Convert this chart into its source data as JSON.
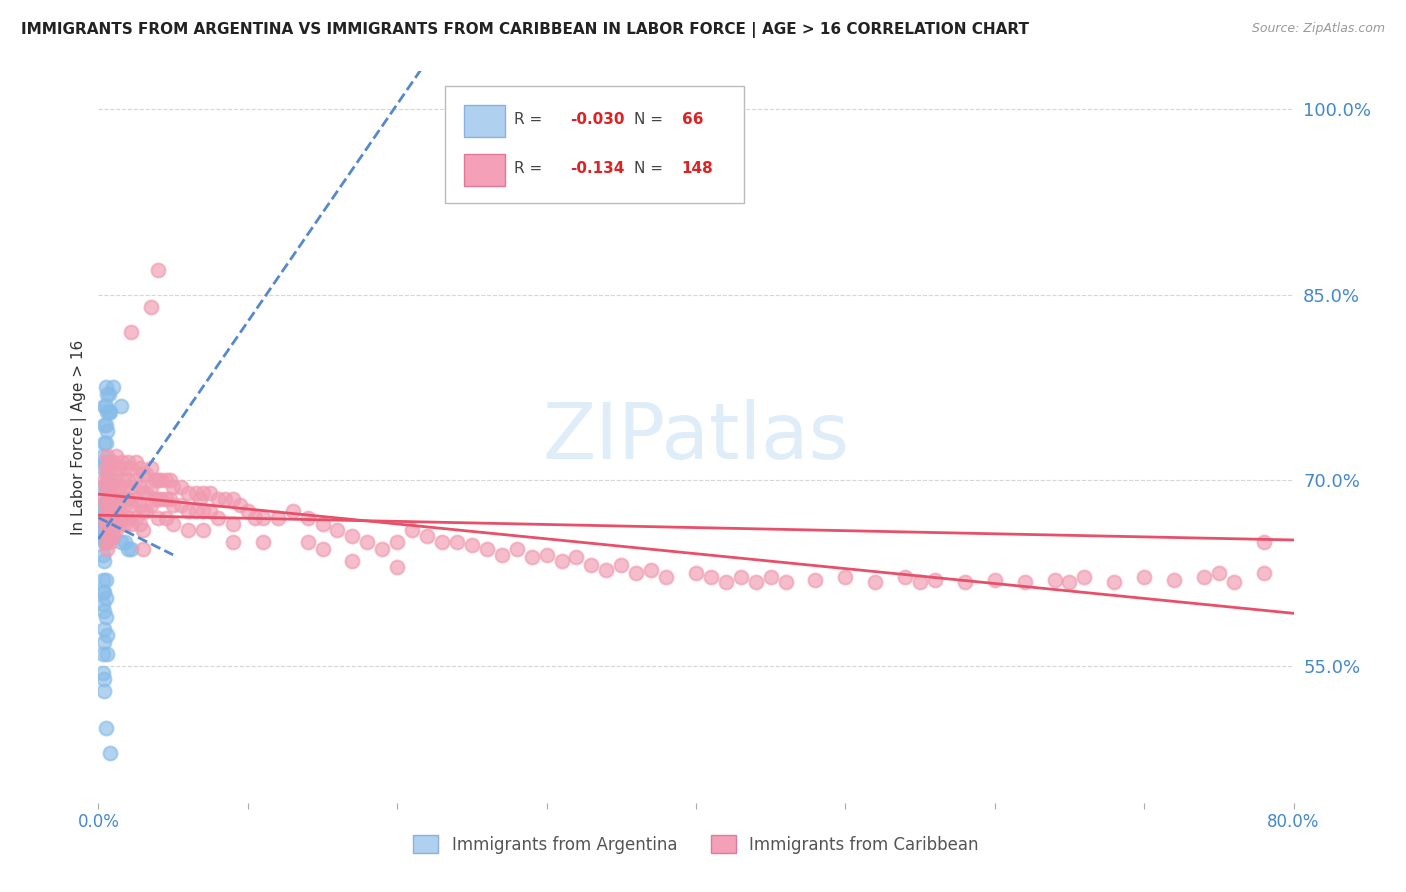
{
  "title": "IMMIGRANTS FROM ARGENTINA VS IMMIGRANTS FROM CARIBBEAN IN LABOR FORCE | AGE > 16 CORRELATION CHART",
  "source": "Source: ZipAtlas.com",
  "ylabel": "In Labor Force | Age > 16",
  "watermark": "ZIPatlas",
  "argentina_color": "#88bce8",
  "caribbean_color": "#f09ab0",
  "argentina_line_color": "#5588cc",
  "caribbean_line_color": "#e8506a",
  "xmin": 0.0,
  "xmax": 0.8,
  "ymin": 0.44,
  "ymax": 1.03,
  "right_yticks": [
    1.0,
    0.85,
    0.7,
    0.55
  ],
  "right_yticklabels": [
    "100.0%",
    "85.0%",
    "70.0%",
    "55.0%"
  ],
  "grid_color": "#cccccc",
  "background_color": "#ffffff",
  "argentina_scatter": [
    [
      0.002,
      0.68
    ],
    [
      0.002,
      0.67
    ],
    [
      0.002,
      0.66
    ],
    [
      0.002,
      0.655
    ],
    [
      0.003,
      0.72
    ],
    [
      0.003,
      0.71
    ],
    [
      0.003,
      0.695
    ],
    [
      0.003,
      0.67
    ],
    [
      0.003,
      0.655
    ],
    [
      0.003,
      0.64
    ],
    [
      0.003,
      0.62
    ],
    [
      0.003,
      0.61
    ],
    [
      0.003,
      0.6
    ],
    [
      0.004,
      0.76
    ],
    [
      0.004,
      0.745
    ],
    [
      0.004,
      0.73
    ],
    [
      0.004,
      0.715
    ],
    [
      0.004,
      0.68
    ],
    [
      0.004,
      0.665
    ],
    [
      0.004,
      0.65
    ],
    [
      0.004,
      0.635
    ],
    [
      0.004,
      0.61
    ],
    [
      0.004,
      0.595
    ],
    [
      0.004,
      0.58
    ],
    [
      0.004,
      0.57
    ],
    [
      0.005,
      0.775
    ],
    [
      0.005,
      0.76
    ],
    [
      0.005,
      0.745
    ],
    [
      0.005,
      0.73
    ],
    [
      0.005,
      0.695
    ],
    [
      0.005,
      0.68
    ],
    [
      0.005,
      0.665
    ],
    [
      0.005,
      0.65
    ],
    [
      0.005,
      0.62
    ],
    [
      0.005,
      0.605
    ],
    [
      0.005,
      0.59
    ],
    [
      0.006,
      0.77
    ],
    [
      0.006,
      0.755
    ],
    [
      0.006,
      0.74
    ],
    [
      0.006,
      0.7
    ],
    [
      0.006,
      0.685
    ],
    [
      0.006,
      0.67
    ],
    [
      0.006,
      0.655
    ],
    [
      0.007,
      0.77
    ],
    [
      0.007,
      0.755
    ],
    [
      0.007,
      0.7
    ],
    [
      0.007,
      0.685
    ],
    [
      0.008,
      0.755
    ],
    [
      0.008,
      0.69
    ],
    [
      0.008,
      0.675
    ],
    [
      0.01,
      0.775
    ],
    [
      0.01,
      0.67
    ],
    [
      0.01,
      0.655
    ],
    [
      0.012,
      0.665
    ],
    [
      0.015,
      0.76
    ],
    [
      0.015,
      0.65
    ],
    [
      0.018,
      0.65
    ],
    [
      0.02,
      0.645
    ],
    [
      0.022,
      0.645
    ],
    [
      0.003,
      0.56
    ],
    [
      0.003,
      0.545
    ],
    [
      0.004,
      0.54
    ],
    [
      0.004,
      0.53
    ],
    [
      0.005,
      0.5
    ],
    [
      0.006,
      0.575
    ],
    [
      0.006,
      0.56
    ],
    [
      0.008,
      0.48
    ]
  ],
  "caribbean_scatter": [
    [
      0.004,
      0.7
    ],
    [
      0.004,
      0.685
    ],
    [
      0.004,
      0.67
    ],
    [
      0.005,
      0.71
    ],
    [
      0.005,
      0.695
    ],
    [
      0.005,
      0.68
    ],
    [
      0.005,
      0.665
    ],
    [
      0.005,
      0.65
    ],
    [
      0.006,
      0.72
    ],
    [
      0.006,
      0.705
    ],
    [
      0.006,
      0.69
    ],
    [
      0.006,
      0.675
    ],
    [
      0.006,
      0.66
    ],
    [
      0.006,
      0.645
    ],
    [
      0.007,
      0.715
    ],
    [
      0.007,
      0.7
    ],
    [
      0.007,
      0.685
    ],
    [
      0.007,
      0.67
    ],
    [
      0.007,
      0.655
    ],
    [
      0.008,
      0.71
    ],
    [
      0.008,
      0.695
    ],
    [
      0.008,
      0.68
    ],
    [
      0.008,
      0.665
    ],
    [
      0.008,
      0.65
    ],
    [
      0.01,
      0.715
    ],
    [
      0.01,
      0.7
    ],
    [
      0.01,
      0.685
    ],
    [
      0.01,
      0.67
    ],
    [
      0.01,
      0.655
    ],
    [
      0.012,
      0.72
    ],
    [
      0.012,
      0.705
    ],
    [
      0.012,
      0.69
    ],
    [
      0.012,
      0.675
    ],
    [
      0.012,
      0.66
    ],
    [
      0.014,
      0.71
    ],
    [
      0.014,
      0.695
    ],
    [
      0.014,
      0.68
    ],
    [
      0.014,
      0.665
    ],
    [
      0.016,
      0.715
    ],
    [
      0.016,
      0.7
    ],
    [
      0.016,
      0.685
    ],
    [
      0.016,
      0.67
    ],
    [
      0.018,
      0.71
    ],
    [
      0.018,
      0.695
    ],
    [
      0.018,
      0.68
    ],
    [
      0.018,
      0.665
    ],
    [
      0.02,
      0.715
    ],
    [
      0.02,
      0.7
    ],
    [
      0.02,
      0.685
    ],
    [
      0.02,
      0.67
    ],
    [
      0.022,
      0.82
    ],
    [
      0.022,
      0.71
    ],
    [
      0.022,
      0.695
    ],
    [
      0.022,
      0.68
    ],
    [
      0.022,
      0.665
    ],
    [
      0.025,
      0.715
    ],
    [
      0.025,
      0.7
    ],
    [
      0.025,
      0.685
    ],
    [
      0.025,
      0.67
    ],
    [
      0.028,
      0.71
    ],
    [
      0.028,
      0.695
    ],
    [
      0.028,
      0.68
    ],
    [
      0.028,
      0.665
    ],
    [
      0.03,
      0.705
    ],
    [
      0.03,
      0.69
    ],
    [
      0.03,
      0.675
    ],
    [
      0.03,
      0.66
    ],
    [
      0.03,
      0.645
    ],
    [
      0.032,
      0.705
    ],
    [
      0.032,
      0.69
    ],
    [
      0.032,
      0.675
    ],
    [
      0.035,
      0.71
    ],
    [
      0.035,
      0.84
    ],
    [
      0.035,
      0.695
    ],
    [
      0.035,
      0.68
    ],
    [
      0.038,
      0.7
    ],
    [
      0.038,
      0.685
    ],
    [
      0.04,
      0.87
    ],
    [
      0.04,
      0.7
    ],
    [
      0.04,
      0.685
    ],
    [
      0.04,
      0.67
    ],
    [
      0.042,
      0.7
    ],
    [
      0.042,
      0.685
    ],
    [
      0.045,
      0.7
    ],
    [
      0.045,
      0.685
    ],
    [
      0.045,
      0.67
    ],
    [
      0.048,
      0.7
    ],
    [
      0.048,
      0.685
    ],
    [
      0.05,
      0.695
    ],
    [
      0.05,
      0.68
    ],
    [
      0.05,
      0.665
    ],
    [
      0.055,
      0.695
    ],
    [
      0.055,
      0.68
    ],
    [
      0.06,
      0.69
    ],
    [
      0.06,
      0.675
    ],
    [
      0.06,
      0.66
    ],
    [
      0.065,
      0.69
    ],
    [
      0.065,
      0.675
    ],
    [
      0.068,
      0.685
    ],
    [
      0.07,
      0.69
    ],
    [
      0.07,
      0.675
    ],
    [
      0.07,
      0.66
    ],
    [
      0.075,
      0.69
    ],
    [
      0.075,
      0.675
    ],
    [
      0.08,
      0.685
    ],
    [
      0.08,
      0.67
    ],
    [
      0.085,
      0.685
    ],
    [
      0.09,
      0.685
    ],
    [
      0.09,
      0.665
    ],
    [
      0.09,
      0.65
    ],
    [
      0.095,
      0.68
    ],
    [
      0.1,
      0.675
    ],
    [
      0.105,
      0.67
    ],
    [
      0.11,
      0.67
    ],
    [
      0.11,
      0.65
    ],
    [
      0.12,
      0.67
    ],
    [
      0.13,
      0.675
    ],
    [
      0.14,
      0.67
    ],
    [
      0.14,
      0.65
    ],
    [
      0.15,
      0.665
    ],
    [
      0.15,
      0.645
    ],
    [
      0.16,
      0.66
    ],
    [
      0.17,
      0.655
    ],
    [
      0.17,
      0.635
    ],
    [
      0.18,
      0.65
    ],
    [
      0.19,
      0.645
    ],
    [
      0.2,
      0.65
    ],
    [
      0.2,
      0.63
    ],
    [
      0.21,
      0.66
    ],
    [
      0.22,
      0.655
    ],
    [
      0.23,
      0.65
    ],
    [
      0.24,
      0.65
    ],
    [
      0.25,
      0.648
    ],
    [
      0.26,
      0.645
    ],
    [
      0.27,
      0.64
    ],
    [
      0.28,
      0.645
    ],
    [
      0.29,
      0.638
    ],
    [
      0.3,
      0.64
    ],
    [
      0.31,
      0.635
    ],
    [
      0.32,
      0.638
    ],
    [
      0.33,
      0.632
    ],
    [
      0.34,
      0.628
    ],
    [
      0.35,
      0.632
    ],
    [
      0.36,
      0.625
    ],
    [
      0.37,
      0.628
    ],
    [
      0.38,
      0.622
    ],
    [
      0.4,
      0.625
    ],
    [
      0.41,
      0.622
    ],
    [
      0.42,
      0.618
    ],
    [
      0.43,
      0.622
    ],
    [
      0.44,
      0.618
    ],
    [
      0.45,
      0.622
    ],
    [
      0.46,
      0.618
    ],
    [
      0.48,
      0.62
    ],
    [
      0.5,
      0.622
    ],
    [
      0.52,
      0.618
    ],
    [
      0.54,
      0.622
    ],
    [
      0.55,
      0.618
    ],
    [
      0.56,
      0.62
    ],
    [
      0.58,
      0.618
    ],
    [
      0.6,
      0.62
    ],
    [
      0.62,
      0.618
    ],
    [
      0.64,
      0.62
    ],
    [
      0.65,
      0.618
    ],
    [
      0.66,
      0.622
    ],
    [
      0.68,
      0.618
    ],
    [
      0.7,
      0.622
    ],
    [
      0.72,
      0.62
    ],
    [
      0.74,
      0.622
    ],
    [
      0.75,
      0.625
    ],
    [
      0.76,
      0.618
    ],
    [
      0.78,
      0.65
    ],
    [
      0.78,
      0.625
    ]
  ]
}
